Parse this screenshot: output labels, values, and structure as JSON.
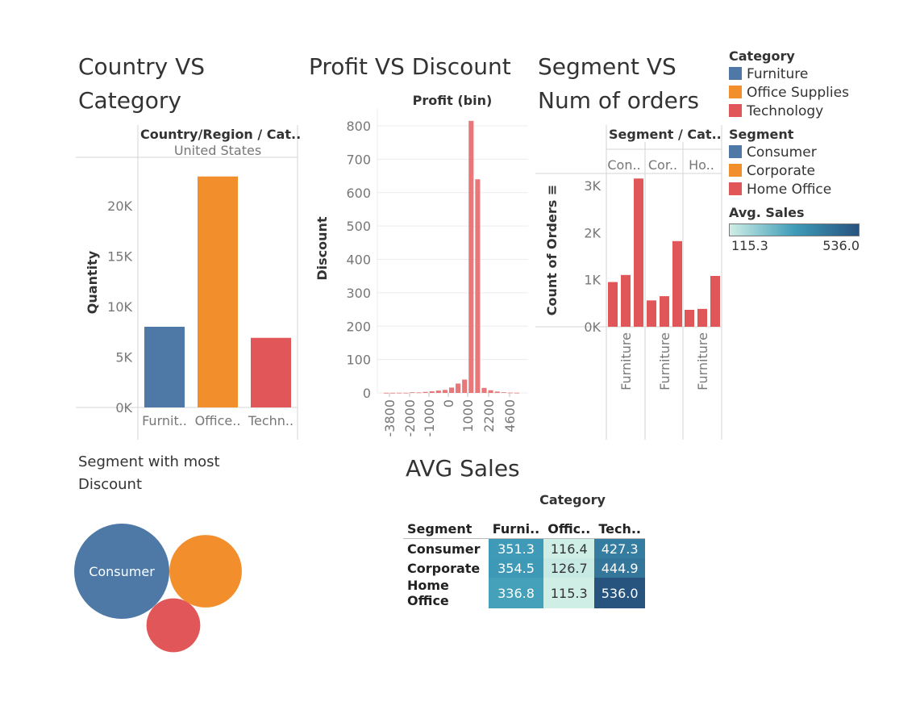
{
  "colors": {
    "furniture": "#4e79a7",
    "office_supplies": "#f28e2b",
    "technology": "#e15759",
    "histogram": "#e8777a",
    "grid": "#ececec",
    "axis": "#bfbfbf"
  },
  "titles": {
    "country_vs_category": [
      "Country VS",
      "Category"
    ],
    "profit_vs_discount": "Profit VS Discount",
    "segment_vs_orders": [
      "Segment VS",
      "Num of orders"
    ],
    "segment_most_discount": [
      "Segment with most",
      "Discount"
    ],
    "avg_sales": "AVG Sales"
  },
  "legend": {
    "category_title": "Category",
    "category_items": [
      "Furniture",
      "Office Supplies",
      "Technology"
    ],
    "segment_title": "Segment",
    "segment_items": [
      "Consumer",
      "Corporate",
      "Home Office"
    ],
    "avg_sales_title": "Avg. Sales",
    "avg_sales_min": "115.3",
    "avg_sales_max": "536.0"
  },
  "chart_data": [
    {
      "type": "bar",
      "header": "Country/Region / Cat..",
      "country": "United States",
      "categories": [
        "Furnit..",
        "Office..",
        "Techn.."
      ],
      "values": [
        8000,
        22900,
        6900
      ],
      "ylabel": "Quantity",
      "yticks": [
        "0K",
        "5K",
        "10K",
        "15K",
        "20K"
      ],
      "ylim": [
        0,
        24000
      ],
      "colors": [
        "#4e79a7",
        "#f28e2b",
        "#e15759"
      ]
    },
    {
      "type": "bar",
      "subtype": "histogram",
      "xlabel": "Profit (bin)",
      "ylabel": "Discount",
      "yticks": [
        "0",
        "100",
        "200",
        "300",
        "400",
        "500",
        "600",
        "700",
        "800"
      ],
      "ylim": [
        0,
        800
      ],
      "xticks": [
        "-3800",
        "-2000",
        "-1000",
        "0",
        "1000",
        "2200",
        "4600"
      ],
      "bins": [
        -3800,
        -3200,
        -2800,
        -2400,
        -2000,
        -1700,
        -1400,
        -1200,
        -1000,
        -800,
        -600,
        -400,
        -200,
        0,
        200,
        400,
        600,
        800,
        1000,
        1400,
        2200
      ],
      "values": [
        0.3,
        0.3,
        0.5,
        0.5,
        2,
        1.5,
        3,
        5,
        7,
        9,
        16,
        28,
        40,
        815,
        640,
        15,
        8,
        4,
        2,
        1,
        0.5
      ]
    },
    {
      "type": "bar",
      "header": "Segment / Cat..",
      "segments": [
        "Con..",
        "Cor..",
        "Ho.."
      ],
      "category_labels": [
        "Furniture",
        "Furniture",
        "Furniture"
      ],
      "ylabel": "Count of Orders",
      "yticks": [
        "0K",
        "1K",
        "2K",
        "3K"
      ],
      "ylim": [
        0,
        3300
      ],
      "values": [
        [
          950,
          1100,
          3150
        ],
        [
          560,
          650,
          1820
        ],
        [
          360,
          380,
          1080
        ]
      ],
      "color": "#e15759"
    },
    {
      "type": "bubble",
      "labels": [
        "Consumer",
        "",
        ""
      ],
      "sizes": [
        1.0,
        0.58,
        0.32
      ],
      "colors": [
        "#4e79a7",
        "#f28e2b",
        "#e15759"
      ]
    },
    {
      "type": "heatmap",
      "column_header": "Category",
      "row_header": "Segment",
      "columns": [
        "Furni..",
        "Offic..",
        "Tech.."
      ],
      "rows": [
        "Consumer",
        "Corporate",
        "Home Office"
      ],
      "values": [
        [
          351.3,
          116.4,
          427.3
        ],
        [
          354.5,
          126.7,
          444.9
        ],
        [
          336.8,
          115.3,
          536.0
        ]
      ],
      "range": [
        115.3,
        536.0
      ]
    }
  ]
}
